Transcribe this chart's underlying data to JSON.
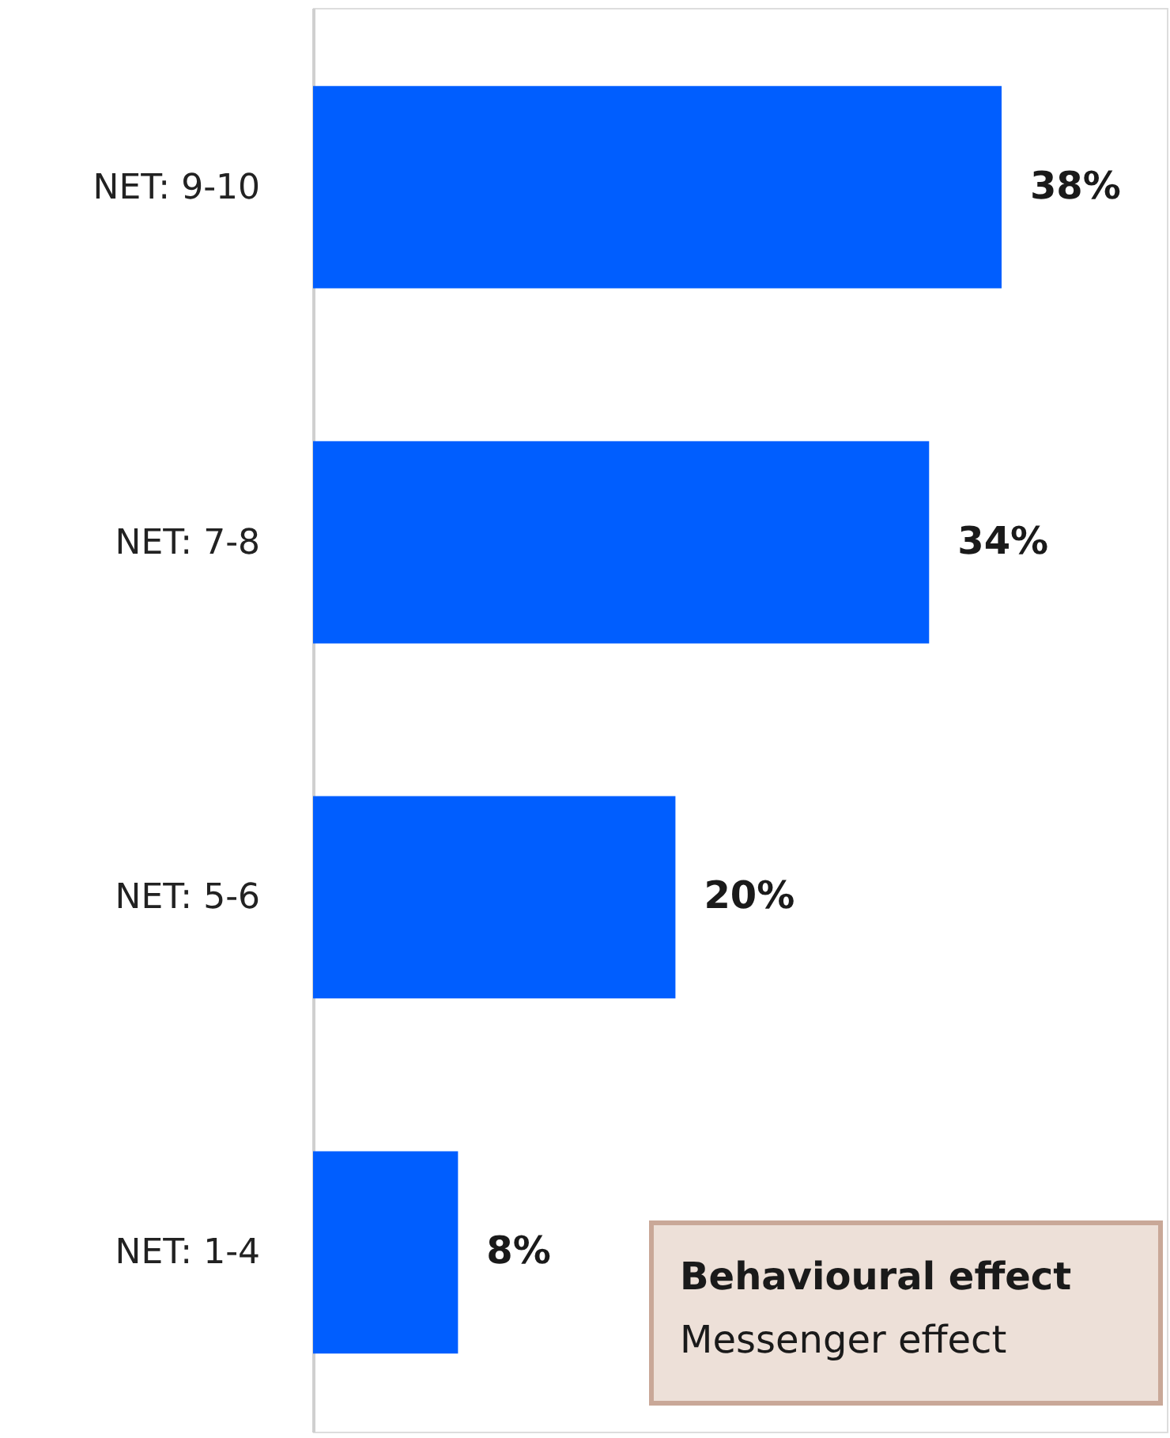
{
  "chart_data": {
    "type": "bar",
    "orientation": "horizontal",
    "categories": [
      "NET: 9-10",
      "NET: 7-8",
      "NET: 5-6",
      "NET: 1-4"
    ],
    "values": [
      38,
      34,
      20,
      8
    ],
    "value_labels": [
      "38%",
      "34%",
      "20%",
      "8%"
    ],
    "color": "#005eff",
    "annotations": [
      "Behavioural effect",
      "Messenger effect"
    ]
  }
}
